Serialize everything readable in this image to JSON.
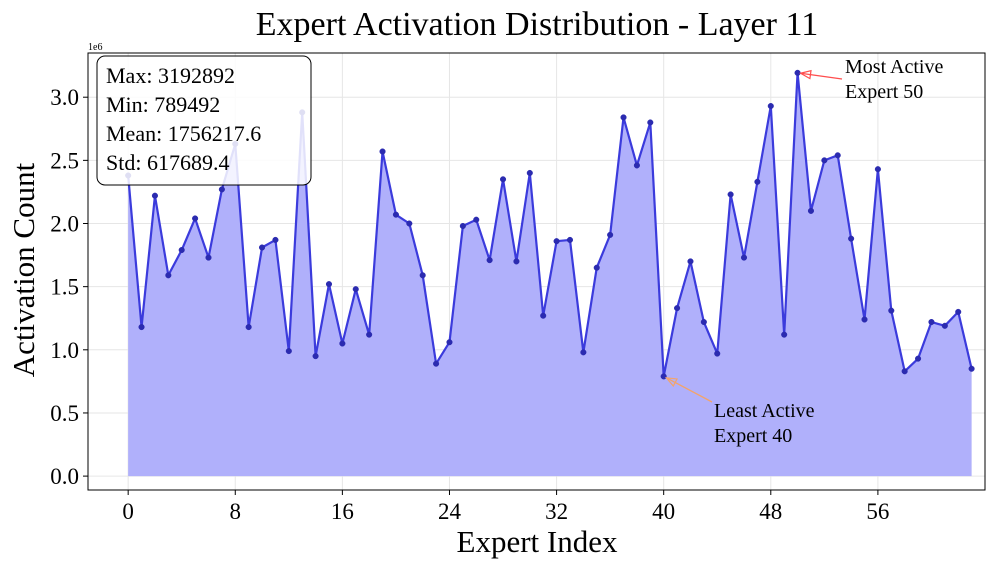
{
  "chart_data": {
    "type": "area",
    "title": "Expert Activation Distribution - Layer 11",
    "xlabel": "Expert Index",
    "ylabel": "Activation Count",
    "y_scale_label": "1e6",
    "xlim": [
      -3,
      64
    ],
    "ylim": [
      -0.11,
      3.35
    ],
    "x_ticks": [
      0,
      8,
      16,
      24,
      32,
      40,
      48,
      56
    ],
    "y_ticks": [
      0.0,
      0.5,
      1.0,
      1.5,
      2.0,
      2.5,
      3.0
    ],
    "y_tick_labels": [
      "0.0",
      "0.5",
      "1.0",
      "1.5",
      "2.0",
      "2.5",
      "3.0"
    ],
    "grid": true,
    "line_color": "#3b3bdc",
    "fill_color": "#b0b0fb",
    "x": [
      0,
      1,
      2,
      3,
      4,
      5,
      6,
      7,
      8,
      9,
      10,
      11,
      12,
      13,
      14,
      15,
      16,
      17,
      18,
      19,
      20,
      21,
      22,
      23,
      24,
      25,
      26,
      27,
      28,
      29,
      30,
      31,
      32,
      33,
      34,
      35,
      36,
      37,
      38,
      39,
      40,
      41,
      42,
      43,
      44,
      45,
      46,
      47,
      48,
      49,
      50,
      51,
      52,
      53,
      54,
      55,
      56,
      57,
      58,
      59,
      60,
      61,
      62,
      63
    ],
    "values": [
      2.38,
      1.18,
      2.22,
      1.59,
      1.79,
      2.04,
      1.73,
      2.27,
      2.63,
      1.18,
      1.81,
      1.87,
      0.99,
      2.88,
      0.95,
      1.52,
      1.05,
      1.48,
      1.12,
      2.57,
      2.07,
      2.0,
      1.59,
      0.89,
      1.06,
      1.98,
      2.03,
      1.71,
      2.35,
      1.7,
      2.4,
      1.27,
      1.86,
      1.87,
      0.98,
      1.65,
      1.91,
      2.84,
      2.46,
      2.8,
      0.789492,
      1.33,
      1.7,
      1.22,
      0.97,
      2.23,
      1.73,
      2.33,
      2.93,
      1.12,
      3.192892,
      2.1,
      2.5,
      2.54,
      1.88,
      1.24,
      2.43,
      1.31,
      0.83,
      0.93,
      1.22,
      1.19,
      1.3,
      0.85
    ],
    "stats": {
      "max": "Max: 3192892",
      "min": "Min: 789492",
      "mean": "Mean: 1756217.6",
      "std": "Std: 617689.4"
    },
    "annotations": [
      {
        "line1": "Most Active",
        "line2": "Expert 50",
        "x": 50,
        "y": 3.192892,
        "arrow_color": "#ff4d4d"
      },
      {
        "line1": "Least Active",
        "line2": "Expert 40",
        "x": 40,
        "y": 0.789492,
        "arrow_color": "#f3a46b"
      }
    ]
  }
}
